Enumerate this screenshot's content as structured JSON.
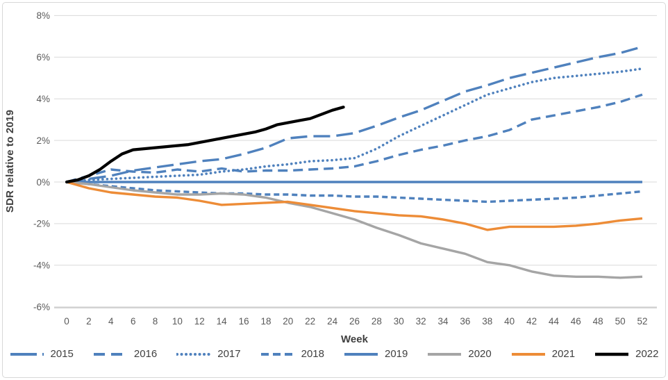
{
  "chart_data": {
    "type": "line",
    "title": "",
    "xlabel": "Week",
    "ylabel": "SDR relative to 2019",
    "xlim": [
      0,
      52
    ],
    "ylim": [
      -6,
      8
    ],
    "grid": "horizontal",
    "legend_position": "bottom",
    "x_axis": {
      "ticks": [
        0,
        2,
        4,
        6,
        8,
        10,
        12,
        14,
        16,
        18,
        20,
        22,
        24,
        26,
        28,
        30,
        32,
        34,
        36,
        38,
        40,
        42,
        44,
        46,
        48,
        50,
        52
      ]
    },
    "y_axis": {
      "ticks": [
        {
          "v": 8,
          "label": "8%"
        },
        {
          "v": 6,
          "label": "6%"
        },
        {
          "v": 4,
          "label": "4%"
        },
        {
          "v": 2,
          "label": "2%"
        },
        {
          "v": 0,
          "label": "0%"
        },
        {
          "v": -2,
          "label": "-2%"
        },
        {
          "v": -4,
          "label": "-4%"
        },
        {
          "v": -6,
          "label": "-6%"
        }
      ]
    },
    "series": [
      {
        "name": "2015",
        "color": "#4F81BD",
        "line_style": "long-dash",
        "x": [
          0,
          2,
          4,
          6,
          8,
          10,
          12,
          14,
          16,
          18,
          20,
          22,
          24,
          26,
          28,
          30,
          32,
          34,
          36,
          38,
          40,
          42,
          44,
          46,
          48,
          50,
          52
        ],
        "y": [
          0,
          0.15,
          0.3,
          0.55,
          0.7,
          0.85,
          1.0,
          1.1,
          1.35,
          1.65,
          2.1,
          2.2,
          2.2,
          2.35,
          2.7,
          3.1,
          3.45,
          3.9,
          4.35,
          4.65,
          5.0,
          5.25,
          5.5,
          5.75,
          6.0,
          6.2,
          6.5
        ]
      },
      {
        "name": "2016",
        "color": "#4F81BD",
        "line_style": "med-dash",
        "x": [
          0,
          2,
          4,
          6,
          8,
          10,
          12,
          14,
          16,
          18,
          20,
          22,
          24,
          26,
          28,
          30,
          32,
          34,
          36,
          38,
          40,
          42,
          44,
          46,
          48,
          50,
          52
        ],
        "y": [
          0,
          0.3,
          0.6,
          0.5,
          0.45,
          0.6,
          0.5,
          0.65,
          0.5,
          0.55,
          0.55,
          0.6,
          0.65,
          0.75,
          1.0,
          1.3,
          1.55,
          1.75,
          2.0,
          2.2,
          2.5,
          3.0,
          3.2,
          3.4,
          3.6,
          3.85,
          4.2
        ]
      },
      {
        "name": "2017",
        "color": "#4F81BD",
        "line_style": "dot",
        "x": [
          0,
          2,
          4,
          6,
          8,
          10,
          12,
          14,
          16,
          18,
          20,
          22,
          24,
          26,
          28,
          30,
          32,
          34,
          36,
          38,
          40,
          42,
          44,
          46,
          48,
          50,
          52
        ],
        "y": [
          0,
          0.1,
          0.15,
          0.2,
          0.25,
          0.3,
          0.35,
          0.5,
          0.6,
          0.75,
          0.85,
          1.0,
          1.05,
          1.15,
          1.6,
          2.2,
          2.7,
          3.2,
          3.7,
          4.2,
          4.5,
          4.8,
          5.0,
          5.1,
          5.2,
          5.3,
          5.45
        ]
      },
      {
        "name": "2018",
        "color": "#4F81BD",
        "line_style": "short-dash",
        "x": [
          0,
          2,
          4,
          6,
          8,
          10,
          12,
          14,
          16,
          18,
          20,
          22,
          24,
          26,
          28,
          30,
          32,
          34,
          36,
          38,
          40,
          42,
          44,
          46,
          48,
          50,
          52
        ],
        "y": [
          0,
          -0.1,
          -0.2,
          -0.3,
          -0.4,
          -0.45,
          -0.5,
          -0.55,
          -0.55,
          -0.6,
          -0.6,
          -0.65,
          -0.65,
          -0.7,
          -0.7,
          -0.75,
          -0.8,
          -0.85,
          -0.9,
          -0.95,
          -0.9,
          -0.85,
          -0.8,
          -0.75,
          -0.65,
          -0.55,
          -0.45
        ]
      },
      {
        "name": "2019",
        "color": "#4F81BD",
        "line_style": "solid",
        "x": [
          0,
          2,
          4,
          6,
          8,
          10,
          12,
          14,
          16,
          18,
          20,
          22,
          24,
          26,
          28,
          30,
          32,
          34,
          36,
          38,
          40,
          42,
          44,
          46,
          48,
          50,
          52
        ],
        "y": [
          0,
          0,
          0,
          0,
          0,
          0,
          0,
          0,
          0,
          0,
          0,
          0,
          0,
          0,
          0,
          0,
          0,
          0,
          0,
          0,
          0,
          0,
          0,
          0,
          0,
          0,
          0
        ]
      },
      {
        "name": "2020",
        "color": "#A5A5A5",
        "line_style": "solid",
        "x": [
          0,
          2,
          4,
          6,
          8,
          10,
          12,
          14,
          16,
          18,
          20,
          22,
          24,
          26,
          28,
          30,
          32,
          34,
          36,
          38,
          40,
          42,
          44,
          46,
          48,
          50,
          52
        ],
        "y": [
          0,
          -0.1,
          -0.25,
          -0.4,
          -0.5,
          -0.6,
          -0.6,
          -0.55,
          -0.6,
          -0.75,
          -1.0,
          -1.2,
          -1.5,
          -1.8,
          -2.2,
          -2.55,
          -2.95,
          -3.2,
          -3.45,
          -3.85,
          -4.0,
          -4.3,
          -4.5,
          -4.55,
          -4.55,
          -4.6,
          -4.55
        ]
      },
      {
        "name": "2021",
        "color": "#ED8C37",
        "line_style": "solid",
        "x": [
          0,
          2,
          4,
          6,
          8,
          10,
          12,
          14,
          16,
          18,
          20,
          22,
          24,
          26,
          28,
          30,
          32,
          34,
          36,
          38,
          40,
          42,
          44,
          46,
          48,
          50,
          52
        ],
        "y": [
          0,
          -0.3,
          -0.5,
          -0.6,
          -0.7,
          -0.75,
          -0.9,
          -1.1,
          -1.05,
          -1.0,
          -0.95,
          -1.1,
          -1.25,
          -1.4,
          -1.5,
          -1.6,
          -1.65,
          -1.8,
          -2.0,
          -2.3,
          -2.15,
          -2.15,
          -2.15,
          -2.1,
          -2.0,
          -1.85,
          -1.75
        ]
      },
      {
        "name": "2022",
        "color": "#000000",
        "line_style": "solid-thick",
        "x": [
          0,
          1,
          2,
          3,
          4,
          5,
          6,
          7,
          8,
          9,
          10,
          11,
          12,
          13,
          14,
          15,
          16,
          17,
          18,
          19,
          20,
          21,
          22,
          23,
          24,
          25
        ],
        "y": [
          0,
          0.1,
          0.3,
          0.6,
          1.0,
          1.35,
          1.55,
          1.6,
          1.65,
          1.7,
          1.75,
          1.8,
          1.9,
          2.0,
          2.1,
          2.2,
          2.3,
          2.4,
          2.55,
          2.75,
          2.85,
          2.95,
          3.05,
          3.25,
          3.45,
          3.6
        ]
      }
    ]
  }
}
